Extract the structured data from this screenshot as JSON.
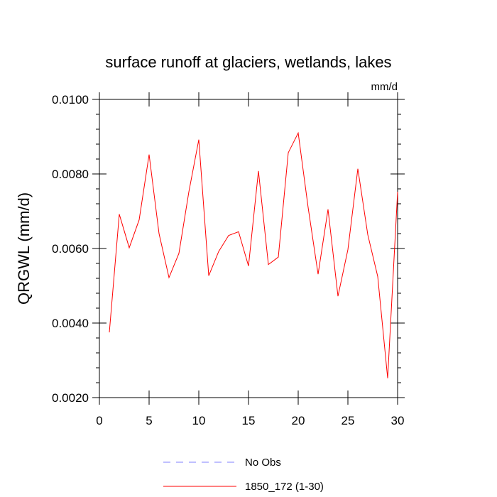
{
  "chart_data": {
    "type": "line",
    "title": "surface runoff at glaciers, wetlands, lakes",
    "units_label": "mm/d",
    "ylabel": "QRGWL  (mm/d)",
    "xlabel": "",
    "xlim": [
      0,
      30
    ],
    "ylim": [
      0.002,
      0.01
    ],
    "x_ticks": [
      0,
      5,
      10,
      15,
      20,
      25,
      30
    ],
    "x_tick_labels": [
      "0",
      "5",
      "10",
      "15",
      "20",
      "25",
      "30"
    ],
    "y_ticks": [
      0.002,
      0.004,
      0.006,
      0.008,
      0.01
    ],
    "y_tick_labels": [
      "0.0020",
      "0.0040",
      "0.0060",
      "0.0080",
      "0.0100"
    ],
    "grid": false,
    "legend_position": "bottom",
    "series": [
      {
        "name": "No Obs",
        "color": "#8080ff",
        "dash": "dashed",
        "x": [],
        "y": []
      },
      {
        "name": "1850_172 (1-30)",
        "color": "#ff0000",
        "dash": "solid",
        "x": [
          1,
          2,
          3,
          4,
          5,
          6,
          7,
          8,
          9,
          10,
          11,
          12,
          13,
          14,
          15,
          16,
          17,
          18,
          19,
          20,
          21,
          22,
          23,
          24,
          25,
          26,
          27,
          28,
          29,
          30
        ],
        "y": [
          0.00375,
          0.00692,
          0.00602,
          0.00677,
          0.00852,
          0.0064,
          0.00522,
          0.00587,
          0.00752,
          0.00892,
          0.00527,
          0.00592,
          0.00635,
          0.00645,
          0.00553,
          0.00808,
          0.00557,
          0.00577,
          0.00857,
          0.0091,
          0.0071,
          0.00531,
          0.00705,
          0.00472,
          0.00597,
          0.00814,
          0.00637,
          0.00525,
          0.00252,
          0.00752
        ]
      }
    ]
  }
}
